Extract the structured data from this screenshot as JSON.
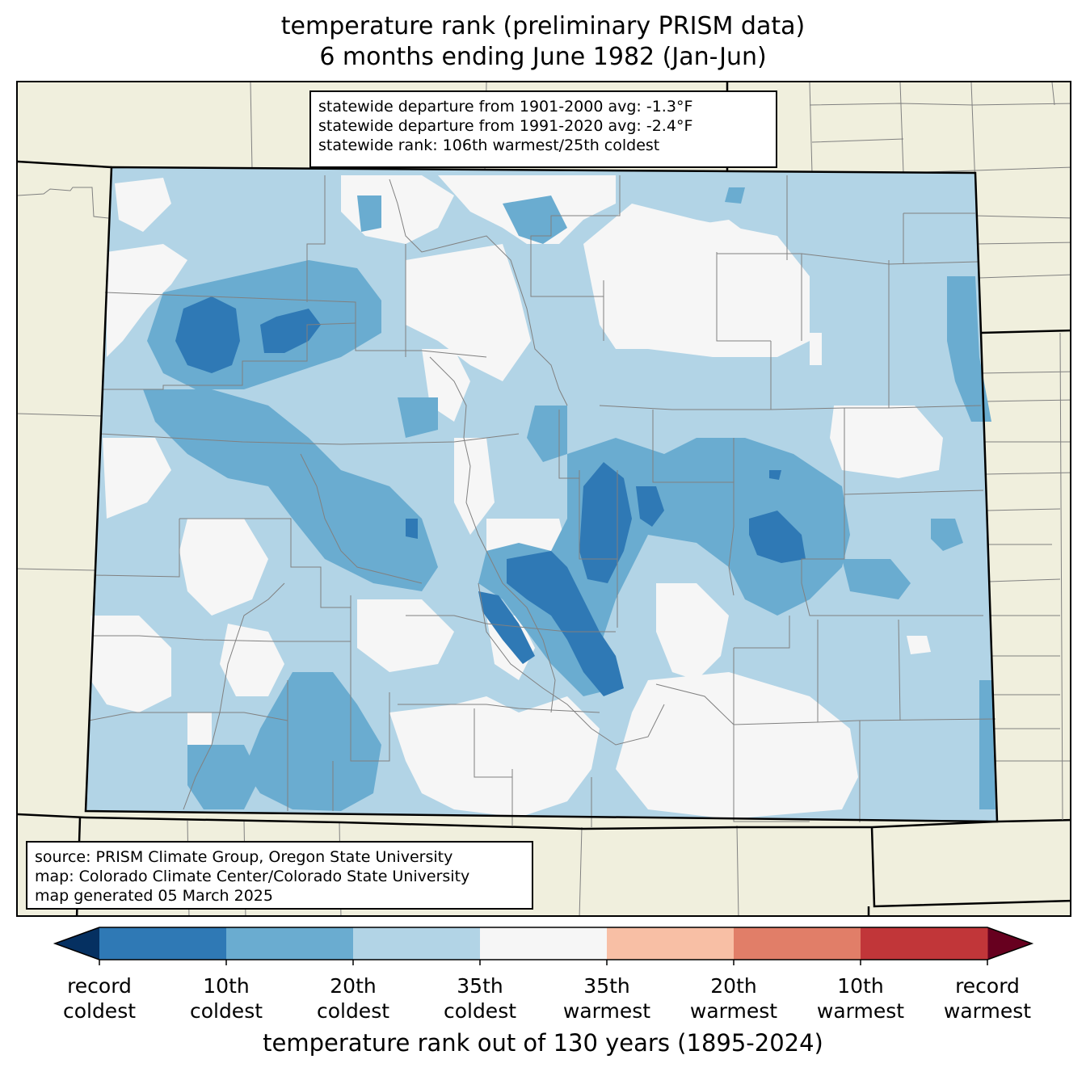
{
  "title": {
    "line1": "temperature rank (preliminary PRISM data)",
    "line2": "6 months ending June 1982 (Jan-Jun)"
  },
  "stats": {
    "line1": "statewide departure from 1901-2000 avg: -1.3°F",
    "line2": "statewide departure from 1991-2020 avg: -2.4°F",
    "line3": "statewide rank: 106th warmest/25th coldest"
  },
  "source": {
    "line1": "source: PRISM Climate Group, Oregon State University",
    "line2": "map: Colorado Climate Center/Colorado State University",
    "line3": "map generated 05 March 2025"
  },
  "colorbar": {
    "xlabel": "temperature rank out of 130 years (1895-2024)",
    "under_color": "#053061",
    "over_color": "#67001f",
    "bins": [
      {
        "color": "#2f79b5"
      },
      {
        "color": "#6aacd0"
      },
      {
        "color": "#b2d4e6"
      },
      {
        "color": "#f6f6f6"
      },
      {
        "color": "#f8bfa5"
      },
      {
        "color": "#e17e68"
      },
      {
        "color": "#c13639"
      }
    ],
    "ticks": [
      {
        "line1": "record",
        "line2": "coldest"
      },
      {
        "line1": "10th",
        "line2": "coldest"
      },
      {
        "line1": "20th",
        "line2": "coldest"
      },
      {
        "line1": "35th",
        "line2": "coldest"
      },
      {
        "line1": "35th",
        "line2": "warmest"
      },
      {
        "line1": "20th",
        "line2": "warmest"
      },
      {
        "line1": "10th",
        "line2": "warmest"
      },
      {
        "line1": "record",
        "line2": "warmest"
      }
    ]
  },
  "map": {
    "land_color": "#f0efdd",
    "state_fill": "#b2d4e6",
    "county_line_color": "#808080",
    "border_color": "#000000"
  }
}
